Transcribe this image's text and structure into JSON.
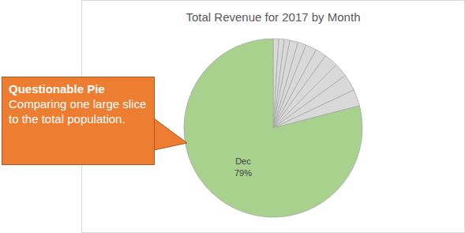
{
  "chart_data": {
    "type": "pie",
    "title": "Total Revenue for 2017 by Month",
    "categories": [
      null,
      null,
      null,
      null,
      null,
      null,
      null,
      null,
      null,
      null,
      null,
      "Dec"
    ],
    "values": [
      1,
      1,
      1,
      1.5,
      1.5,
      2,
      2,
      2.5,
      2.5,
      3,
      3,
      79
    ],
    "value_labels": [
      null,
      null,
      null,
      null,
      null,
      null,
      null,
      null,
      null,
      null,
      null,
      "79%"
    ],
    "colors": [
      "#d9d9d9",
      "#d9d9d9",
      "#d9d9d9",
      "#d9d9d9",
      "#d9d9d9",
      "#d9d9d9",
      "#d9d9d9",
      "#d9d9d9",
      "#d9d9d9",
      "#d9d9d9",
      "#d9d9d9",
      "#a9d18e"
    ],
    "data_labels": true,
    "annotations": [
      {
        "title": "Questionable Pie",
        "text": "Comparing one large slice to the total population."
      }
    ]
  }
}
